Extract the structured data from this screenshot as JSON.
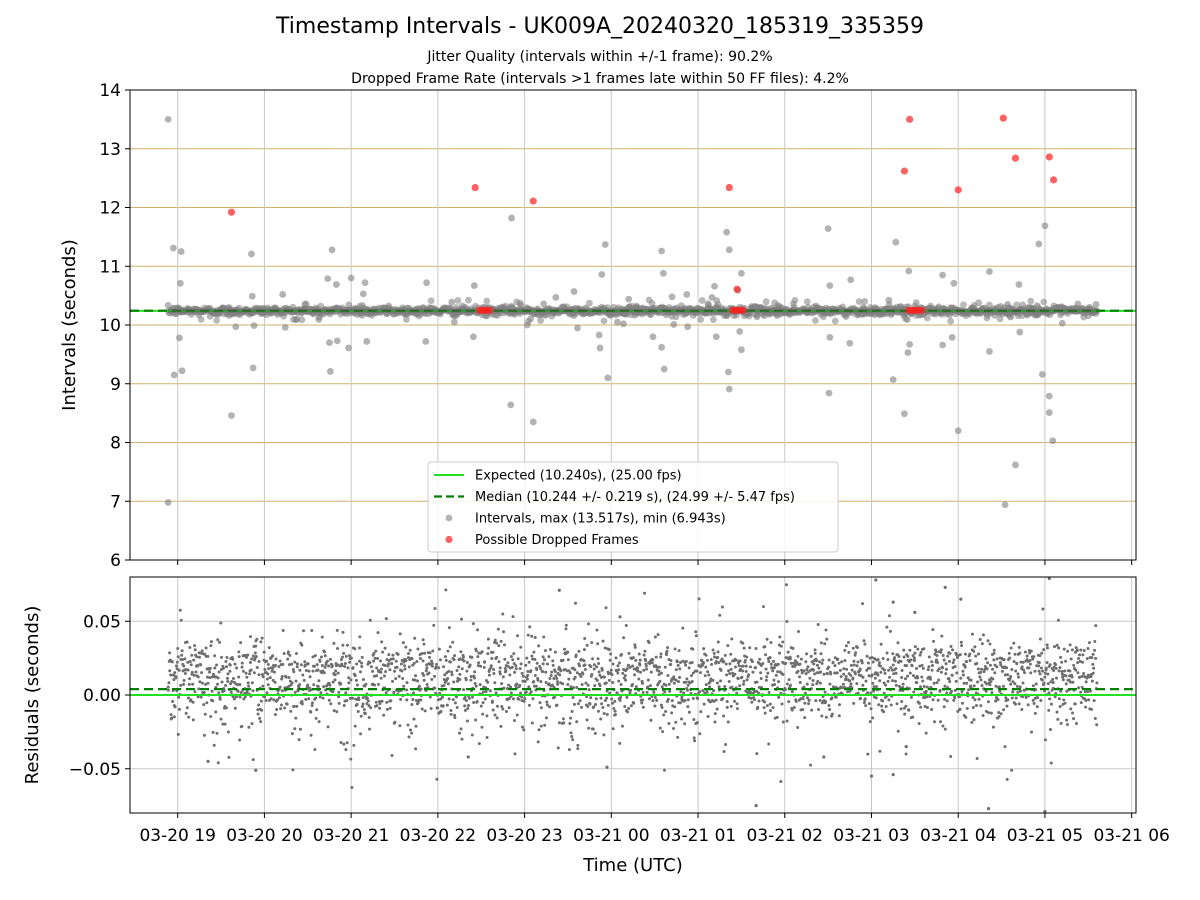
{
  "title": "Timestamp Intervals - UK009A_20240320_185319_335359",
  "subtitle1": "Jitter Quality (intervals within +/-1 frame): 90.2%",
  "subtitle2": "Dropped Frame Rate (intervals >1 frames late within 50 FF files): 4.2%",
  "colors": {
    "expected": "#22e022",
    "median": "#007f00",
    "interval_points": "#808080",
    "dropped_points": "#ff2020",
    "hgrid_top": "#d4b06a",
    "grid": "#c8c8c8"
  },
  "chart_data": [
    {
      "type": "scatter",
      "panel": "intervals",
      "ylabel": "Intervals (seconds)",
      "ylim": [
        6,
        14
      ],
      "yticks": [
        6,
        7,
        8,
        9,
        10,
        11,
        12,
        13,
        14
      ],
      "xlim_hours": [
        18.45,
        30.05
      ],
      "x_tick_labels": [
        "03-20 19",
        "03-20 20",
        "03-20 21",
        "03-20 22",
        "03-20 23",
        "03-21 00",
        "03-21 01",
        "03-21 02",
        "03-21 03",
        "03-21 04",
        "03-21 05",
        "03-21 06"
      ],
      "x_tick_hours": [
        19,
        20,
        21,
        22,
        23,
        24,
        25,
        26,
        27,
        28,
        29,
        30
      ],
      "data_start_hour": 18.889,
      "data_end_hour": 29.6,
      "expected": 10.24,
      "median": 10.244,
      "series": [
        {
          "name": "Intervals, max (13.517s), min (6.943s)",
          "kind": "interval",
          "points": [
            [
              18.89,
              13.5
            ],
            [
              18.89,
              6.98
            ],
            [
              18.95,
              11.31
            ],
            [
              18.96,
              9.15
            ],
            [
              19.04,
              11.25
            ],
            [
              19.03,
              10.71
            ],
            [
              19.02,
              9.78
            ],
            [
              19.05,
              9.22
            ],
            [
              19.62,
              8.46
            ],
            [
              19.67,
              9.97
            ],
            [
              19.85,
              11.21
            ],
            [
              19.87,
              9.27
            ],
            [
              19.86,
              10.49
            ],
            [
              19.88,
              9.99
            ],
            [
              20.21,
              10.52
            ],
            [
              20.24,
              9.96
            ],
            [
              20.48,
              10.36
            ],
            [
              20.73,
              10.79
            ],
            [
              20.75,
              9.7
            ],
            [
              20.76,
              9.21
            ],
            [
              20.78,
              11.28
            ],
            [
              20.83,
              10.69
            ],
            [
              20.84,
              9.73
            ],
            [
              20.9,
              10.29
            ],
            [
              20.97,
              9.61
            ],
            [
              21.0,
              10.8
            ],
            [
              21.14,
              10.53
            ],
            [
              21.16,
              10.72
            ],
            [
              21.18,
              9.72
            ],
            [
              21.62,
              10.27
            ],
            [
              21.86,
              9.72
            ],
            [
              21.87,
              10.72
            ],
            [
              22.42,
              10.67
            ],
            [
              22.41,
              9.8
            ],
            [
              22.55,
              10.16
            ],
            [
              22.85,
              11.82
            ],
            [
              22.84,
              8.64
            ],
            [
              23.03,
              10.0
            ],
            [
              23.1,
              8.35
            ],
            [
              23.36,
              10.47
            ],
            [
              23.57,
              10.57
            ],
            [
              23.61,
              9.95
            ],
            [
              23.86,
              9.83
            ],
            [
              23.89,
              10.86
            ],
            [
              23.87,
              9.61
            ],
            [
              23.93,
              11.37
            ],
            [
              23.96,
              9.1
            ],
            [
              24.14,
              10.02
            ],
            [
              24.2,
              10.44
            ],
            [
              24.29,
              10.32
            ],
            [
              24.48,
              9.8
            ],
            [
              24.58,
              11.26
            ],
            [
              24.6,
              10.88
            ],
            [
              24.58,
              9.62
            ],
            [
              24.61,
              9.25
            ],
            [
              24.7,
              10.48
            ],
            [
              24.72,
              10.01
            ],
            [
              24.87,
              10.52
            ],
            [
              24.88,
              9.97
            ],
            [
              25.16,
              10.47
            ],
            [
              25.19,
              10.66
            ],
            [
              25.21,
              9.8
            ],
            [
              25.33,
              11.58
            ],
            [
              25.36,
              11.28
            ],
            [
              25.35,
              9.2
            ],
            [
              25.36,
              8.91
            ],
            [
              25.5,
              10.88
            ],
            [
              25.5,
              9.58
            ],
            [
              25.46,
              10.59
            ],
            [
              25.48,
              9.89
            ],
            [
              25.68,
              10.14
            ],
            [
              25.85,
              10.26
            ],
            [
              25.92,
              10.33
            ],
            [
              26.06,
              10.18
            ],
            [
              26.5,
              11.64
            ],
            [
              26.51,
              8.84
            ],
            [
              26.52,
              10.67
            ],
            [
              26.52,
              9.79
            ],
            [
              26.76,
              10.77
            ],
            [
              26.75,
              9.69
            ],
            [
              26.9,
              10.19
            ],
            [
              27.2,
              10.42
            ],
            [
              27.28,
              11.41
            ],
            [
              27.25,
              9.07
            ],
            [
              27.38,
              8.49
            ],
            [
              27.43,
              10.92
            ],
            [
              27.42,
              9.53
            ],
            [
              27.44,
              9.67
            ],
            [
              27.5,
              10.32
            ],
            [
              27.82,
              10.85
            ],
            [
              27.82,
              9.66
            ],
            [
              27.95,
              10.71
            ],
            [
              27.93,
              9.79
            ],
            [
              28.17,
              10.27
            ],
            [
              28.36,
              10.91
            ],
            [
              28.36,
              9.55
            ],
            [
              28.7,
              10.69
            ],
            [
              28.71,
              9.88
            ],
            [
              28.91,
              10.33
            ],
            [
              28.93,
              11.38
            ],
            [
              28.97,
              9.16
            ],
            [
              29.0,
              11.69
            ],
            [
              29.05,
              8.79
            ],
            [
              29.05,
              8.51
            ],
            [
              29.09,
              8.03
            ],
            [
              29.2,
              10.03
            ],
            [
              29.38,
              10.36
            ],
            [
              29.59,
              10.35
            ],
            [
              28.54,
              6.94
            ],
            [
              28.66,
              7.62
            ],
            [
              28.0,
              8.2
            ],
            [
              24.07,
              10.05
            ],
            [
              22.16,
              10.39
            ],
            [
              22.19,
              10.05
            ],
            [
              23.22,
              10.36
            ],
            [
              22.95,
              10.37
            ],
            [
              28.57,
              10.35
            ],
            [
              28.84,
              10.21
            ],
            [
              29.45,
              10.2
            ]
          ]
        },
        {
          "name": "Possible Dropped Frames",
          "kind": "dropped",
          "points": [
            [
              19.62,
              11.92
            ],
            [
              22.43,
              12.34
            ],
            [
              23.1,
              12.11
            ],
            [
              25.36,
              12.34
            ],
            [
              25.45,
              10.61
            ],
            [
              27.38,
              12.62
            ],
            [
              27.44,
              13.5
            ],
            [
              28.0,
              12.3
            ],
            [
              28.52,
              13.52
            ],
            [
              28.66,
              12.84
            ],
            [
              29.05,
              12.86
            ],
            [
              29.1,
              12.47
            ],
            [
              22.48,
              10.25
            ],
            [
              22.51,
              10.25
            ],
            [
              22.54,
              10.25
            ],
            [
              22.57,
              10.25
            ],
            [
              22.6,
              10.25
            ],
            [
              25.4,
              10.25
            ],
            [
              25.43,
              10.25
            ],
            [
              25.46,
              10.25
            ],
            [
              25.49,
              10.25
            ],
            [
              25.52,
              10.25
            ],
            [
              27.43,
              10.25
            ],
            [
              27.46,
              10.25
            ],
            [
              27.49,
              10.25
            ],
            [
              27.52,
              10.25
            ],
            [
              27.55,
              10.25
            ],
            [
              27.58,
              10.25
            ]
          ]
        }
      ],
      "legend": [
        {
          "kind": "solid-line",
          "label": "Expected (10.240s), (25.00 fps)"
        },
        {
          "kind": "dashed-line",
          "label": "Median (10.244 +/- 0.219 s), (24.99 +/- 5.47 fps)"
        },
        {
          "kind": "grey-dot",
          "label": "Intervals, max (13.517s), min (6.943s)"
        },
        {
          "kind": "red-dot",
          "label": "Possible Dropped Frames"
        }
      ]
    },
    {
      "type": "scatter",
      "panel": "residuals",
      "ylabel": "Residuals (seconds)",
      "xlabel": "Time (UTC)",
      "ylim": [
        -0.08,
        0.08
      ],
      "yticks": [
        -0.05,
        0.0,
        0.05
      ],
      "ytick_labels": [
        "−0.05",
        "0.00",
        "0.05"
      ],
      "expected_line": 0.0,
      "median_line": 0.004,
      "residual_band": {
        "center": 0.008,
        "spread": 0.022,
        "upper_cluster": 0.02,
        "lower_cluster": 0.0
      },
      "outliers": [
        [
          23.4,
          0.071
        ],
        [
          24.1,
          0.053
        ],
        [
          27.05,
          0.078
        ],
        [
          27.25,
          0.063
        ],
        [
          27.5,
          0.056
        ],
        [
          27.85,
          0.073
        ],
        [
          28.03,
          0.065
        ],
        [
          29.05,
          0.079
        ],
        [
          19.9,
          -0.051
        ],
        [
          23.95,
          -0.049
        ],
        [
          25.67,
          -0.075
        ],
        [
          27.4,
          -0.035
        ],
        [
          27.0,
          -0.055
        ],
        [
          27.25,
          -0.054
        ],
        [
          28.35,
          -0.077
        ],
        [
          29.0,
          -0.079
        ],
        [
          22.35,
          -0.042
        ],
        [
          26.45,
          -0.042
        ],
        [
          19.35,
          -0.045
        ]
      ]
    }
  ]
}
